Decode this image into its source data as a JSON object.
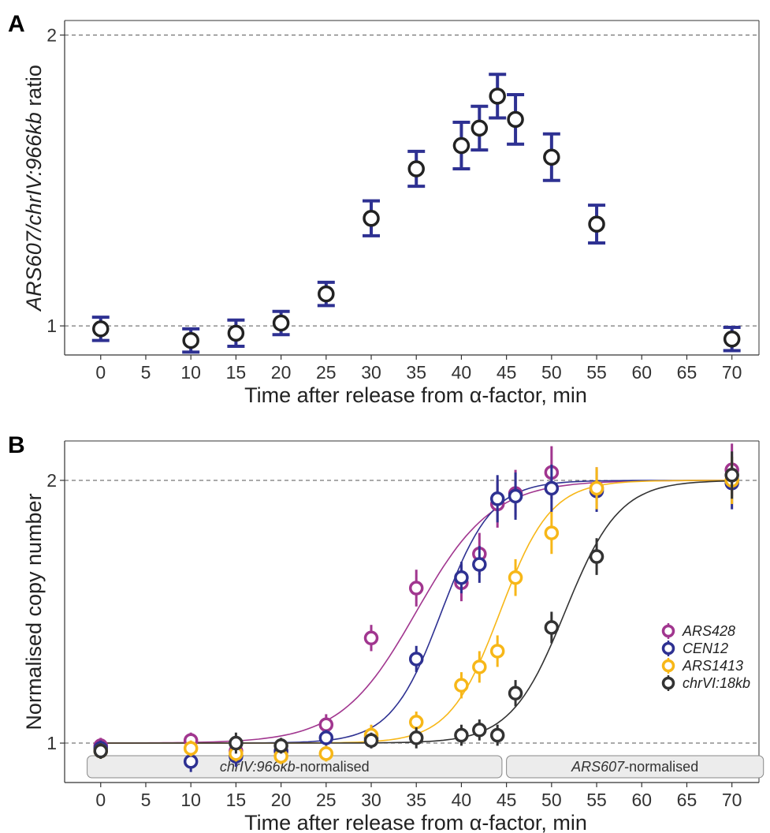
{
  "chart_data": [
    {
      "panel": "A",
      "type": "scatter",
      "ylabel_parts": [
        {
          "text": "ARS607/chrIV:966kb",
          "italic": true
        },
        {
          "text": " ratio",
          "italic": false
        }
      ],
      "xlabel": "Time after release from α-factor, min",
      "xlim": [
        -4,
        73
      ],
      "ylim": [
        0.9,
        2.05
      ],
      "xticks": [
        0,
        5,
        10,
        15,
        20,
        25,
        30,
        35,
        40,
        45,
        50,
        55,
        60,
        65,
        70
      ],
      "yticks": [
        1,
        2
      ],
      "reference_lines": [
        1,
        2
      ],
      "colors": {
        "errorbar": "#2e3192",
        "marker": "#222222"
      },
      "series": [
        {
          "x": [
            0,
            10,
            15,
            20,
            25,
            30,
            35,
            40,
            42,
            44,
            46,
            50,
            55,
            70
          ],
          "y": [
            0.99,
            0.95,
            0.975,
            1.01,
            1.11,
            1.37,
            1.54,
            1.62,
            1.68,
            1.79,
            1.71,
            1.58,
            1.35,
            0.955
          ],
          "err": [
            0.04,
            0.04,
            0.045,
            0.04,
            0.04,
            0.06,
            0.06,
            0.08,
            0.075,
            0.075,
            0.085,
            0.08,
            0.065,
            0.04
          ]
        }
      ]
    },
    {
      "panel": "B",
      "type": "scatter",
      "ylabel": "Normalised copy number",
      "xlabel": "Time after release from α-factor, min",
      "xlim": [
        -4,
        73
      ],
      "ylim": [
        0.85,
        2.15
      ],
      "xticks": [
        0,
        5,
        10,
        15,
        20,
        25,
        30,
        35,
        40,
        45,
        50,
        55,
        60,
        65,
        70
      ],
      "yticks": [
        1,
        2
      ],
      "reference_lines": [
        1,
        2
      ],
      "legend_position": "right",
      "series": [
        {
          "name": "ARS428",
          "color": "#a1368f",
          "fit": {
            "t_half": 35.0,
            "slope": 4.2
          },
          "x": [
            0,
            10,
            15,
            20,
            25,
            30,
            35,
            40,
            42,
            44,
            46,
            50,
            55,
            70
          ],
          "y": [
            0.99,
            1.01,
            0.97,
            0.97,
            1.07,
            1.4,
            1.59,
            1.61,
            1.72,
            1.91,
            1.95,
            2.03,
            1.97,
            2.04
          ],
          "err": [
            0.03,
            0.03,
            0.04,
            0.03,
            0.04,
            0.05,
            0.07,
            0.07,
            0.08,
            0.09,
            0.09,
            0.1,
            0.08,
            0.1
          ]
        },
        {
          "name": "CEN12",
          "color": "#2e3192",
          "fit": {
            "t_half": 37.8,
            "slope": 2.8
          },
          "x": [
            0,
            10,
            15,
            20,
            25,
            30,
            35,
            40,
            42,
            44,
            46,
            50,
            55,
            70
          ],
          "y": [
            0.98,
            0.93,
            0.95,
            0.97,
            1.02,
            1.02,
            1.32,
            1.63,
            1.68,
            1.93,
            1.94,
            1.97,
            1.96,
            1.99
          ],
          "err": [
            0.03,
            0.04,
            0.04,
            0.03,
            0.03,
            0.04,
            0.05,
            0.06,
            0.07,
            0.09,
            0.09,
            0.09,
            0.08,
            0.1
          ]
        },
        {
          "name": "ARS1413",
          "color": "#f7b718",
          "fit": {
            "t_half": 44.3,
            "slope": 2.8
          },
          "x": [
            0,
            10,
            15,
            20,
            25,
            30,
            35,
            40,
            42,
            44,
            46,
            50,
            55,
            70
          ],
          "y": [
            0.97,
            0.98,
            0.96,
            0.95,
            0.96,
            1.03,
            1.08,
            1.22,
            1.29,
            1.35,
            1.63,
            1.8,
            1.97,
            2.0
          ],
          "err": [
            0.03,
            0.03,
            0.03,
            0.03,
            0.03,
            0.04,
            0.04,
            0.05,
            0.06,
            0.06,
            0.07,
            0.08,
            0.08,
            0.09
          ]
        },
        {
          "name": "chrVI:18kb",
          "color": "#333333",
          "fit": {
            "t_half": 51.5,
            "slope": 3.0
          },
          "x": [
            0,
            15,
            20,
            30,
            35,
            40,
            42,
            44,
            46,
            50,
            55,
            70
          ],
          "y": [
            0.97,
            1.0,
            0.99,
            1.01,
            1.02,
            1.03,
            1.05,
            1.03,
            1.19,
            1.44,
            1.71,
            2.02
          ],
          "err": [
            0.03,
            0.04,
            0.03,
            0.03,
            0.04,
            0.04,
            0.04,
            0.04,
            0.05,
            0.06,
            0.07,
            0.09
          ]
        }
      ],
      "strip_labels": [
        {
          "parts": [
            {
              "text": "chrIV:966kb",
              "italic": true
            },
            {
              "text": "-normalised",
              "italic": false
            }
          ],
          "from": -1.5,
          "to": 44.5
        },
        {
          "parts": [
            {
              "text": "ARS607",
              "italic": true
            },
            {
              "text": "-normalised",
              "italic": false
            }
          ],
          "from": 45,
          "to": 73.5
        }
      ]
    }
  ],
  "panel_letters": {
    "a": "A",
    "b": "B"
  }
}
